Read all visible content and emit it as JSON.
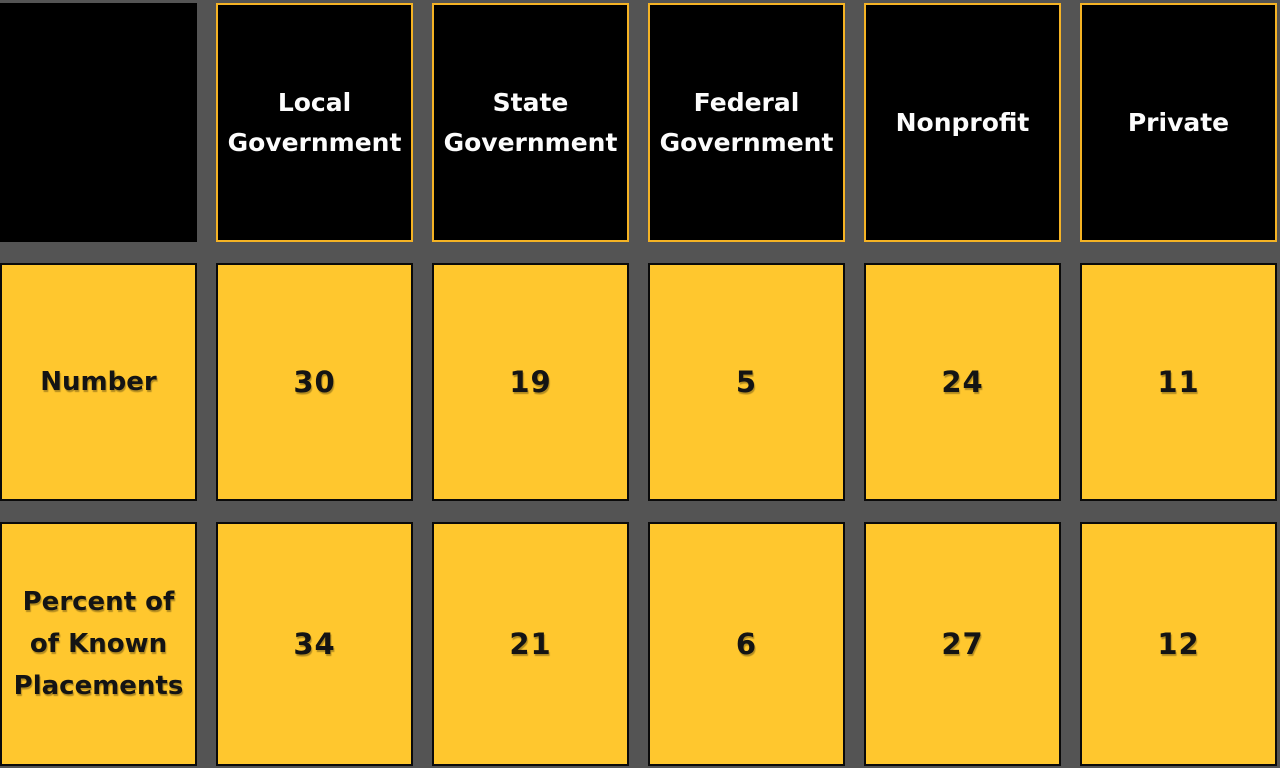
{
  "colors": {
    "background_gray": "#545454",
    "cell_yellow": "#FFC72E",
    "header_black": "#000000",
    "header_border_gold": "#F5B324",
    "header_text": "#FFFFFF",
    "body_text": "#141414"
  },
  "table": {
    "column_headers": [
      {
        "lines": [
          "Local",
          "Government"
        ]
      },
      {
        "lines": [
          "State",
          "Government"
        ]
      },
      {
        "lines": [
          "Federal",
          "Government"
        ]
      },
      {
        "lines": [
          "Nonprofit"
        ]
      },
      {
        "lines": [
          "Private"
        ]
      }
    ],
    "rows": [
      {
        "label_lines": [
          "Number"
        ],
        "values": [
          "30",
          "19",
          "5",
          "24",
          "11"
        ]
      },
      {
        "label_lines": [
          "Percent of",
          "of Known",
          "Placements"
        ],
        "values": [
          "34",
          "21",
          "6",
          "27",
          "12"
        ]
      }
    ]
  },
  "chart_data": {
    "type": "table",
    "columns": [
      "Local Government",
      "State Government",
      "Federal Government",
      "Nonprofit",
      "Private"
    ],
    "rows": [
      {
        "label": "Number",
        "values": [
          30,
          19,
          5,
          24,
          11
        ]
      },
      {
        "label": "Percent of of Known Placements",
        "values": [
          34,
          21,
          6,
          27,
          12
        ]
      }
    ]
  }
}
